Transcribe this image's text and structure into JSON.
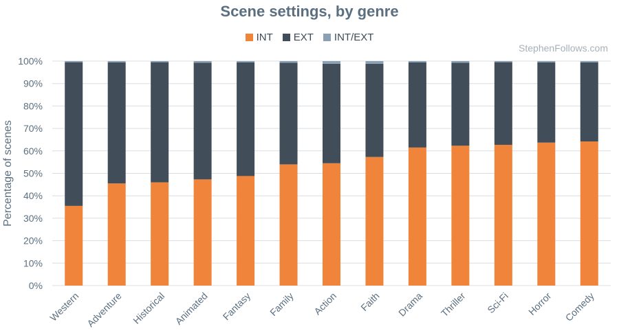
{
  "chart_data": {
    "type": "bar",
    "stacked": true,
    "title": "Scene settings, by genre",
    "xlabel": "",
    "ylabel": "Percentage of scenes",
    "ylim": [
      0,
      100
    ],
    "yticks": [
      "0%",
      "10%",
      "20%",
      "30%",
      "40%",
      "50%",
      "60%",
      "70%",
      "80%",
      "90%",
      "100%"
    ],
    "grid": true,
    "legend_position": "top-center",
    "categories": [
      "Western",
      "Adventure",
      "Historical",
      "Animated",
      "Fantasy",
      "Family",
      "Action",
      "Faith",
      "Drama",
      "Thriller",
      "Sci-Fi",
      "Horror",
      "Comedy"
    ],
    "series": [
      {
        "name": "INT",
        "color": "#f0843a",
        "values": [
          35.5,
          45.5,
          46,
          47.3,
          48.8,
          54,
          54.5,
          57.3,
          61.5,
          62.3,
          62.7,
          63.7,
          64.2
        ]
      },
      {
        "name": "EXT",
        "color": "#414e5a",
        "values": [
          64,
          53.9,
          53.5,
          52,
          50.6,
          45.3,
          44.3,
          41.5,
          37.9,
          37,
          36.8,
          35.7,
          35.2
        ]
      },
      {
        "name": "INT/EXT",
        "color": "#8aa1b5",
        "values": [
          0.5,
          0.6,
          0.5,
          0.7,
          0.6,
          0.7,
          1.2,
          1.2,
          0.6,
          0.7,
          0.5,
          0.6,
          0.6
        ]
      }
    ]
  },
  "watermark": "StephenFollows.com"
}
